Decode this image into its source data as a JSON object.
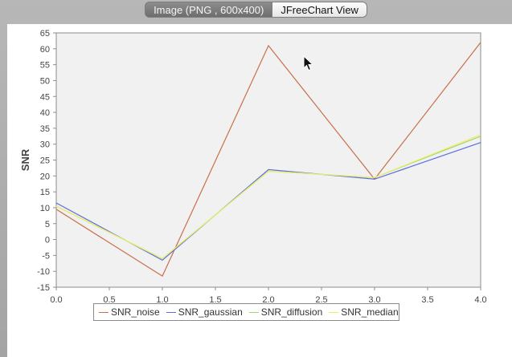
{
  "tabs": [
    {
      "label": "Image (PNG , 600x400)",
      "active": true
    },
    {
      "label": "JFreeChart View",
      "active": false
    }
  ],
  "chart_data": {
    "type": "line",
    "xlabel": "Image",
    "ylabel": "SNR",
    "xlim": [
      0,
      4
    ],
    "ylim": [
      -15,
      65
    ],
    "x_ticks": [
      "0.0",
      "0.5",
      "1.0",
      "1.5",
      "2.0",
      "2.5",
      "3.0",
      "3.5",
      "4.0"
    ],
    "y_ticks": [
      "65",
      "60",
      "55",
      "50",
      "45",
      "40",
      "35",
      "30",
      "25",
      "20",
      "15",
      "10",
      "5",
      "0",
      "-5",
      "-10",
      "-15"
    ],
    "grid": false,
    "legend_position": "bottom",
    "x": [
      0,
      1,
      2,
      3,
      4
    ],
    "series": [
      {
        "name": "SNR_noise",
        "color": "#c8704a",
        "values": [
          9.5,
          -11.5,
          61,
          19,
          62
        ]
      },
      {
        "name": "SNR_gaussian",
        "color": "#5a6fe0",
        "values": [
          11.5,
          -6.5,
          22,
          19,
          30.5
        ]
      },
      {
        "name": "SNR_diffusion",
        "color": "#9ed86a",
        "values": [
          10.5,
          -6,
          21.5,
          19.5,
          32.5
        ]
      },
      {
        "name": "SNR_median",
        "color": "#eeee66",
        "values": [
          10.5,
          -6,
          21.5,
          19.5,
          33
        ]
      }
    ]
  }
}
